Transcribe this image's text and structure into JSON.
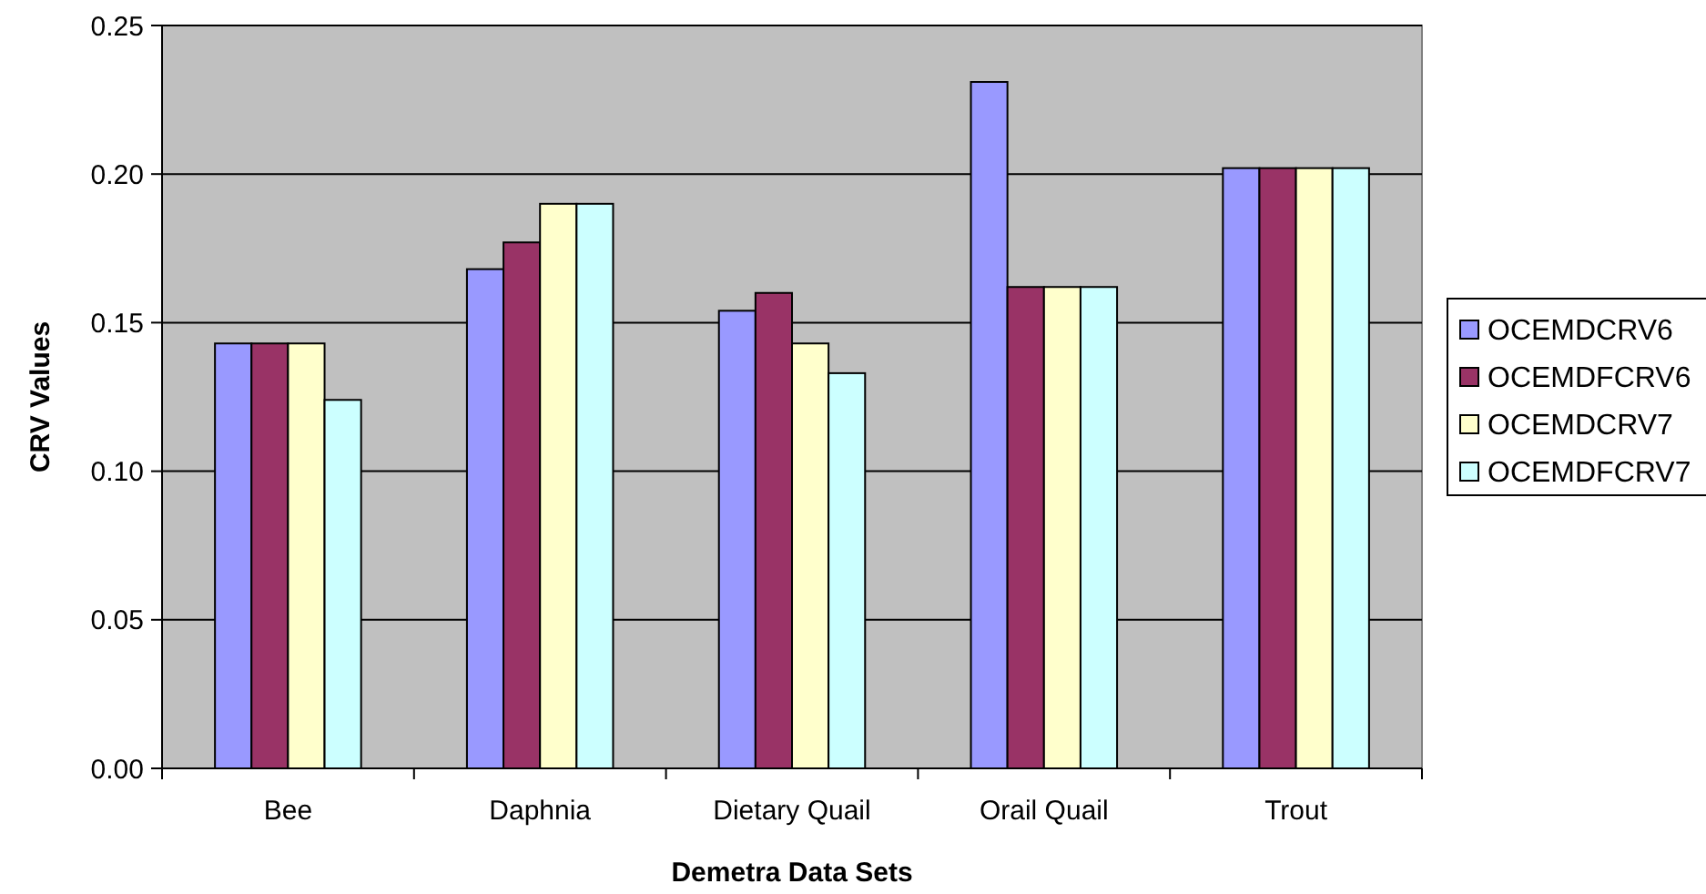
{
  "chart_data": {
    "type": "bar",
    "xlabel": "Demetra Data Sets",
    "ylabel": "CRV Values",
    "categories": [
      "Bee",
      "Daphnia",
      "Dietary Quail",
      "Orail Quail",
      "Trout"
    ],
    "series": [
      {
        "name": "OCEMDCRV6",
        "color": "#9999ff",
        "values": [
          0.143,
          0.168,
          0.154,
          0.231,
          0.202
        ]
      },
      {
        "name": "OCEMDFCRV6",
        "color": "#993366",
        "values": [
          0.143,
          0.177,
          0.16,
          0.162,
          0.202
        ]
      },
      {
        "name": "OCEMDCRV7",
        "color": "#ffffcc",
        "values": [
          0.143,
          0.19,
          0.143,
          0.162,
          0.202
        ]
      },
      {
        "name": "OCEMDFCRV7",
        "color": "#ccffff",
        "values": [
          0.124,
          0.19,
          0.133,
          0.162,
          0.202
        ]
      }
    ],
    "ylim": [
      0,
      0.25
    ],
    "yticks": [
      {
        "value": 0,
        "label": "0.00"
      },
      {
        "value": 0.05,
        "label": "0.05"
      },
      {
        "value": 0.1,
        "label": "0.10"
      },
      {
        "value": 0.15,
        "label": "0.15"
      },
      {
        "value": 0.2,
        "label": "0.20"
      },
      {
        "value": 0.25,
        "label": "0.25"
      }
    ],
    "grid": "y",
    "legend": "right"
  }
}
